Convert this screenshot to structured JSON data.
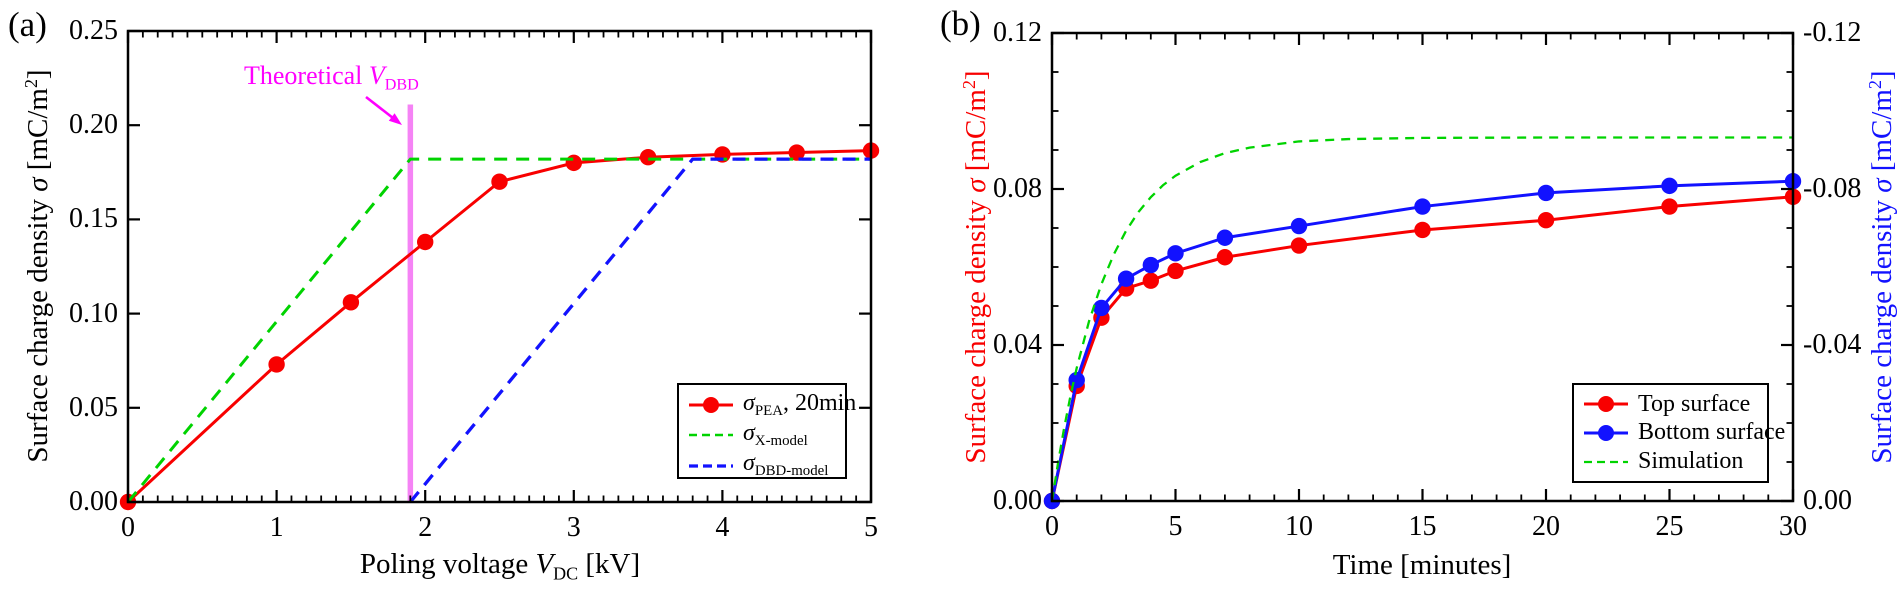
{
  "panel_a": {
    "label": "(a)",
    "x_title_rich": [
      {
        "t": "Poling voltage "
      },
      {
        "t": "V",
        "i": 1
      },
      {
        "t": "DC",
        "sub": 1
      },
      {
        "t": " [kV]"
      }
    ],
    "y_title_rich": [
      {
        "t": "Surface charge density "
      },
      {
        "t": "σ",
        "i": 1
      },
      {
        "t": " [mC/m"
      },
      {
        "t": "2",
        "sup": 1
      },
      {
        "t": "]"
      }
    ],
    "annotation_rich": [
      {
        "t": "Theoretical "
      },
      {
        "t": "V",
        "i": 1
      },
      {
        "t": "DBD",
        "sub": 1
      }
    ],
    "annotation_color": "#ff00ff",
    "legend": [
      {
        "label_rich": [
          {
            "t": "σ",
            "i": 1
          },
          {
            "t": "PEA",
            "sub": 1
          },
          {
            "t": ", 20min"
          }
        ],
        "color": "#f80000",
        "marker": true,
        "dash": "",
        "lw": 3
      },
      {
        "label_rich": [
          {
            "t": "σ",
            "i": 1
          },
          {
            "t": "X-model",
            "sub": 1
          }
        ],
        "color": "#00d300",
        "marker": false,
        "dash": "8 5",
        "lw": 2.6
      },
      {
        "label_rich": [
          {
            "t": "σ",
            "i": 1
          },
          {
            "t": "DBD-model",
            "sub": 1
          }
        ],
        "color": "#1212ff",
        "marker": false,
        "dash": "9 5",
        "lw": 3.2
      }
    ]
  },
  "panel_b": {
    "label": "(b)",
    "x_title_rich": [
      {
        "t": "Time [minutes]"
      }
    ],
    "y_title_left_rich": [
      {
        "t": "Surface charge density "
      },
      {
        "t": "σ",
        "i": 1
      },
      {
        "t": " [mC/m"
      },
      {
        "t": "2",
        "sup": 1
      },
      {
        "t": "]"
      }
    ],
    "y_title_right_rich": [
      {
        "t": "Surface charge density "
      },
      {
        "t": "σ",
        "i": 1
      },
      {
        "t": " [mC/m"
      },
      {
        "t": "2",
        "sup": 1
      },
      {
        "t": "]"
      }
    ],
    "y_title_left_color": "#f80000",
    "y_title_right_color": "#1212ff",
    "legend": [
      {
        "label_rich": [
          {
            "t": "Top surface"
          }
        ],
        "color": "#f80000",
        "marker": true,
        "dash": "",
        "lw": 3
      },
      {
        "label_rich": [
          {
            "t": "Bottom surface"
          }
        ],
        "color": "#1212ff",
        "marker": true,
        "dash": "",
        "lw": 3
      },
      {
        "label_rich": [
          {
            "t": "Simulation"
          }
        ],
        "color": "#00d300",
        "marker": false,
        "dash": "8 5",
        "lw": 2.2
      }
    ]
  },
  "chart_data": [
    {
      "id": "a",
      "type": "line",
      "title": "",
      "xlabel": "Poling voltage V_DC [kV]",
      "ylabel": "Surface charge density σ [mC/m^2]",
      "xlim": [
        0,
        5
      ],
      "ylim": [
        0,
        0.25
      ],
      "grid": false,
      "legend_position": "lower right",
      "x_ticks": {
        "values": [
          0,
          1,
          2,
          3,
          4,
          5
        ],
        "labels": [
          "0",
          "1",
          "2",
          "3",
          "4",
          "5"
        ],
        "minor_step": 0.1
      },
      "y_ticks": {
        "values": [
          0,
          0.05,
          0.1,
          0.15,
          0.2,
          0.25
        ],
        "labels": [
          "0.00",
          "0.05",
          "0.10",
          "0.15",
          "0.20",
          "0.25"
        ],
        "minor_step": null
      },
      "series": [
        {
          "name": "sigma_PEA, 20min",
          "color": "#f80000",
          "style": "solid",
          "marker": "circle",
          "lw": 3,
          "x": [
            0,
            1,
            1.5,
            2,
            2.5,
            3,
            3.5,
            4,
            4.5,
            5
          ],
          "y": [
            0,
            0.073,
            0.106,
            0.138,
            0.17,
            0.18,
            0.183,
            0.1845,
            0.1855,
            0.1865
          ]
        },
        {
          "name": "sigma_X-model",
          "color": "#00d300",
          "style": "dashed",
          "marker": null,
          "lw": 3,
          "dash": "13 9",
          "x": [
            0,
            1.9,
            5
          ],
          "y": [
            0,
            0.182,
            0.182
          ]
        },
        {
          "name": "sigma_DBD-model",
          "color": "#1212ff",
          "style": "dashed",
          "marker": null,
          "lw": 3.3,
          "dash": "13 9",
          "x": [
            1.9,
            3.8,
            5
          ],
          "y": [
            0,
            0.182,
            0.182
          ]
        }
      ],
      "annotation": {
        "text": "Theoretical V_DBD",
        "vline_x": 1.9,
        "vline_top": 0.211,
        "vline_color": "#f583f5",
        "text_color": "#ff00ff"
      }
    },
    {
      "id": "b",
      "type": "line",
      "title": "",
      "xlabel": "Time [minutes]",
      "ylabel_left": "Surface charge density σ [mC/m^2]",
      "ylabel_right": "Surface charge density σ [mC/m^2] (negative scale)",
      "xlim": [
        0,
        30
      ],
      "ylim": [
        0,
        0.12
      ],
      "grid": false,
      "legend_position": "lower right",
      "x_ticks": {
        "values": [
          0,
          5,
          10,
          15,
          20,
          25,
          30
        ],
        "labels": [
          "0",
          "5",
          "10",
          "15",
          "20",
          "25",
          "30"
        ],
        "minor_step": 1
      },
      "y_ticks": {
        "values": [
          0,
          0.04,
          0.08,
          0.12
        ],
        "labels": [
          "0.00",
          "0.04",
          "0.08",
          "0.12"
        ],
        "right_labels": [
          "0.00",
          "-0.04",
          "-0.08",
          "-0.12"
        ],
        "minor_step": 0.01
      },
      "series": [
        {
          "name": "Top surface",
          "color": "#f80000",
          "style": "solid",
          "marker": "circle",
          "lw": 3,
          "x": [
            0,
            1,
            2,
            3,
            4,
            5,
            7,
            10,
            15,
            20,
            25,
            30
          ],
          "y": [
            0,
            0.0295,
            0.047,
            0.0545,
            0.0565,
            0.059,
            0.0625,
            0.0655,
            0.0695,
            0.072,
            0.0755,
            0.078
          ]
        },
        {
          "name": "Bottom surface",
          "color": "#1212ff",
          "style": "solid",
          "marker": "circle",
          "lw": 3,
          "x": [
            0,
            1,
            2,
            3,
            4,
            5,
            7,
            10,
            15,
            20,
            25,
            30
          ],
          "y": [
            0,
            0.031,
            0.0495,
            0.057,
            0.0605,
            0.0635,
            0.0675,
            0.0705,
            0.0755,
            0.079,
            0.0808,
            0.082
          ]
        },
        {
          "name": "Simulation",
          "color": "#00d300",
          "style": "dashed",
          "marker": null,
          "lw": 2.3,
          "dash": "9 7",
          "x": [
            0,
            0.25,
            0.5,
            0.75,
            1,
            1.5,
            2,
            2.5,
            3,
            3.5,
            4,
            4.5,
            5,
            6,
            7,
            8,
            10,
            12,
            15,
            20,
            25,
            30
          ],
          "y": [
            0,
            0.01,
            0.019,
            0.027,
            0.0341,
            0.0461,
            0.0556,
            0.0632,
            0.0693,
            0.0741,
            0.0779,
            0.081,
            0.0834,
            0.0869,
            0.0892,
            0.0906,
            0.0922,
            0.0928,
            0.0931,
            0.0932,
            0.0932,
            0.0932
          ]
        }
      ]
    }
  ]
}
